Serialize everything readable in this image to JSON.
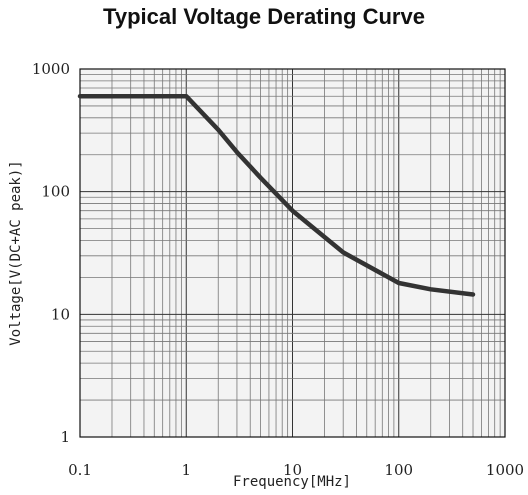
{
  "chart_data": {
    "type": "line",
    "title": "Typical Voltage Derating Curve",
    "xlabel": "Frequency[MHz]",
    "ylabel": "Voltage[V(DC+AC peak)]",
    "x_scale": "log",
    "y_scale": "log",
    "xlim": [
      0.1,
      1000
    ],
    "ylim": [
      1,
      1000
    ],
    "grid": true,
    "x_ticks": [
      "0.1",
      "1",
      "10",
      "100",
      "1000"
    ],
    "y_ticks": [
      "1",
      "10",
      "100",
      "1000"
    ],
    "series": [
      {
        "color": "#333333",
        "x": [
          0.1,
          1,
          2,
          3,
          5,
          10,
          30,
          100,
          200,
          500
        ],
        "y": [
          600,
          600,
          320,
          210,
          130,
          70,
          32,
          18,
          16,
          14.5
        ]
      }
    ]
  }
}
